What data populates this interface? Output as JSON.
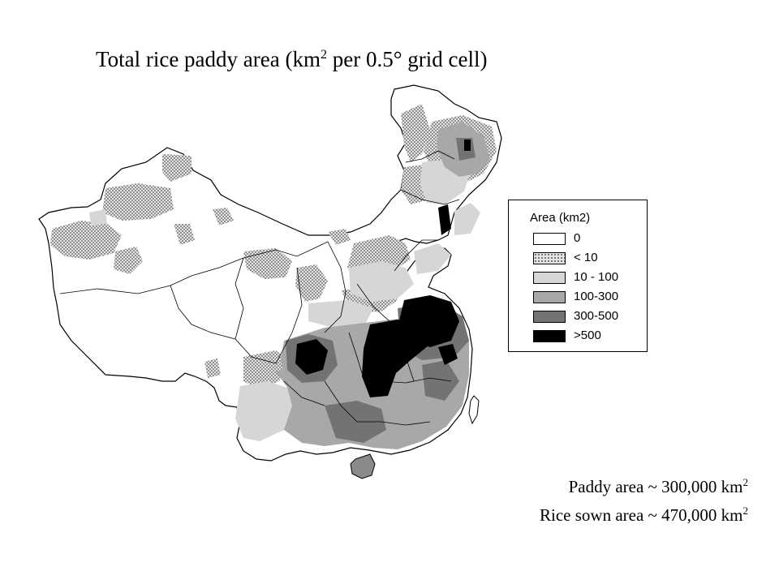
{
  "title": {
    "text": "Total rice paddy area (km",
    "sup": "2",
    "rest": " per 0.5° grid cell)"
  },
  "legend": {
    "title": "Area (km2)",
    "items": [
      {
        "label": "0",
        "color": "#ffffff"
      },
      {
        "label": "< 10",
        "color": "#bdbdbd",
        "pattern": "dotted"
      },
      {
        "label": "10 - 100",
        "color": "#d6d6d6"
      },
      {
        "label": "100-300",
        "color": "#a8a8a8"
      },
      {
        "label": "300-500",
        "color": "#737373"
      },
      {
        "label": ">500",
        "color": "#000000"
      }
    ]
  },
  "stats": {
    "paddy": {
      "text": "Paddy area ~ 300,000 km",
      "sup": "2"
    },
    "sown": {
      "text": "Rice sown area ~ 470,000 km",
      "sup": "2"
    }
  }
}
